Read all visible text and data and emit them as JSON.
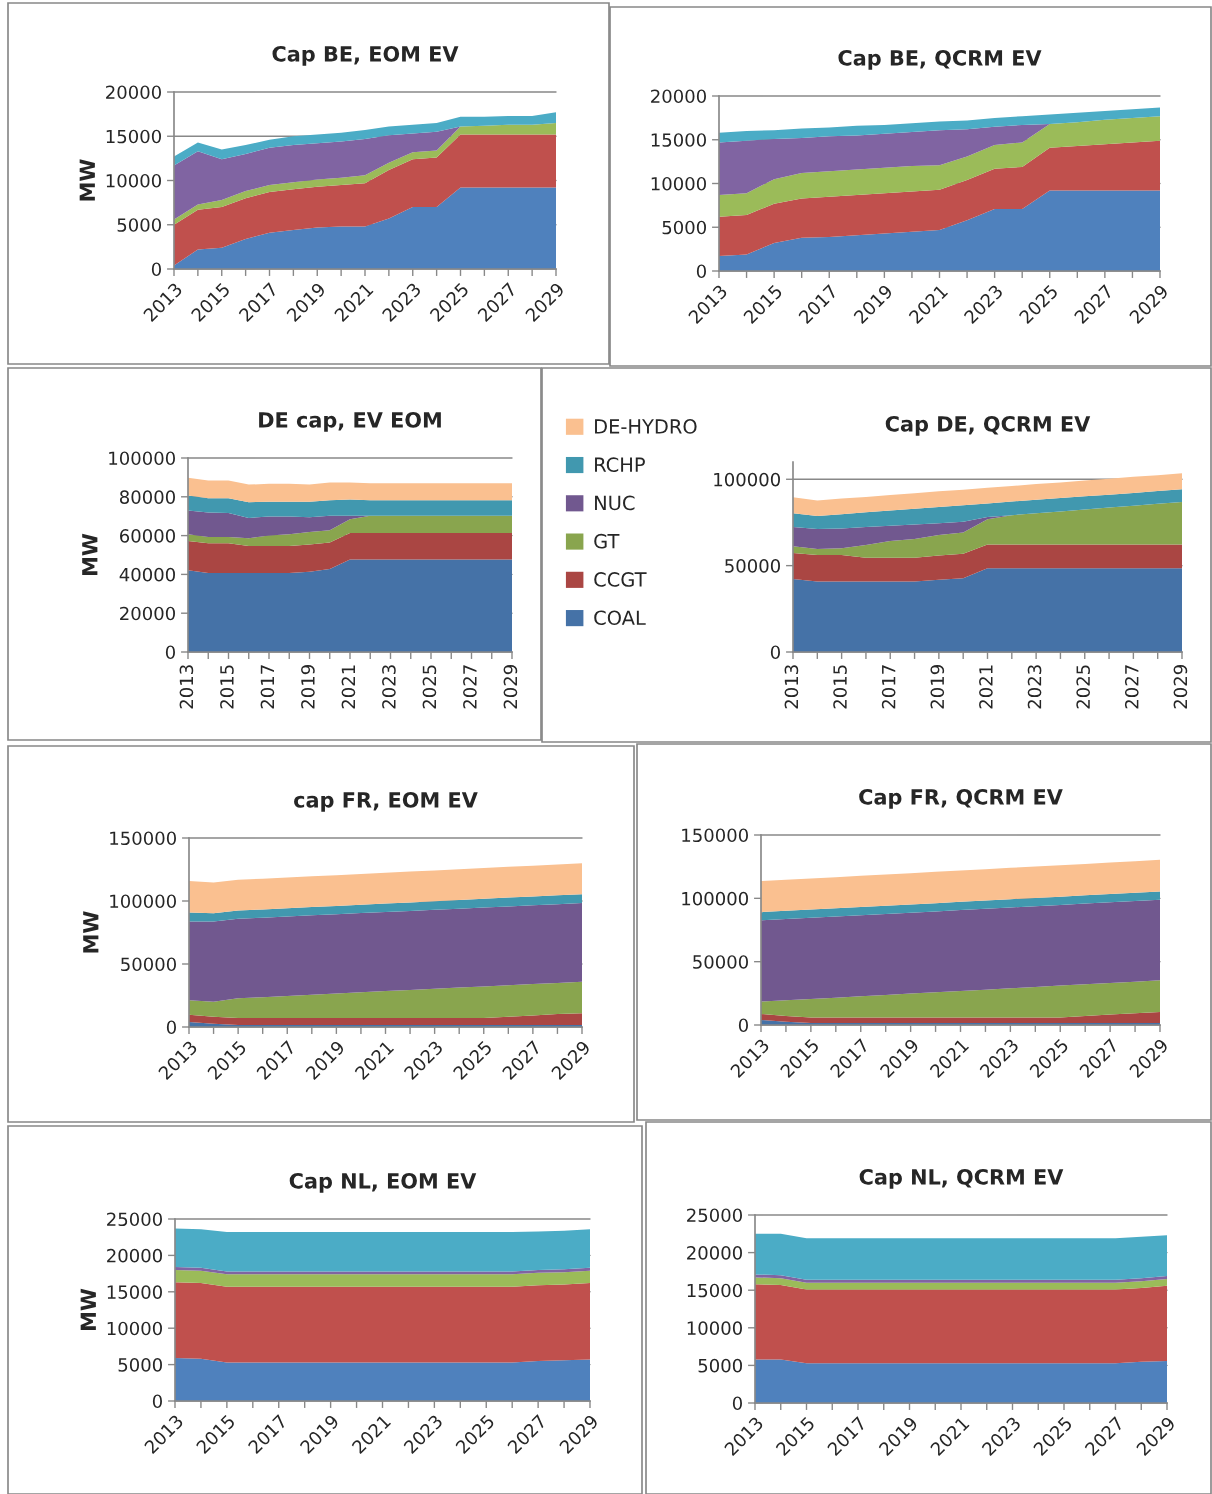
{
  "chart_data": [
    {
      "type": "area",
      "stacked": true,
      "title": "Cap BE, EOM EV",
      "ylabel": "MW",
      "categories": [
        "2013",
        null,
        "2015",
        null,
        "2017",
        null,
        "2019",
        null,
        "2021",
        null,
        "2023",
        null,
        "2025",
        null,
        "2027",
        null,
        "2029"
      ],
      "ylim": [
        0,
        20000
      ],
      "yticks": [
        0,
        5000,
        10000,
        15000,
        20000
      ],
      "grid": "y",
      "series": [
        {
          "color": "#4f81bd",
          "values": [
            400,
            2200,
            2400,
            3400,
            4100,
            4400,
            4700,
            4800,
            4800,
            5700,
            7000,
            7000,
            9200,
            9200,
            9200,
            9200,
            9200
          ]
        },
        {
          "color": "#c0504d",
          "values": [
            4600,
            4500,
            4600,
            4600,
            4600,
            4600,
            4600,
            4700,
            4900,
            5500,
            5400,
            5600,
            6000,
            6000,
            6000,
            6000,
            6000
          ]
        },
        {
          "color": "#9bbb59",
          "values": [
            600,
            600,
            800,
            800,
            800,
            800,
            800,
            800,
            900,
            800,
            800,
            800,
            900,
            1000,
            1100,
            1100,
            1300
          ]
        },
        {
          "color": "#8064a2",
          "values": [
            6100,
            6000,
            4600,
            4200,
            4200,
            4200,
            4100,
            4100,
            4100,
            3100,
            2100,
            2100,
            0,
            0,
            0,
            0,
            0
          ]
        },
        {
          "color": "#4bacc6",
          "values": [
            1000,
            1000,
            1100,
            1000,
            900,
            1000,
            1000,
            1000,
            1000,
            1000,
            1000,
            1000,
            1100,
            1000,
            1000,
            1000,
            1200
          ]
        }
      ]
    },
    {
      "type": "area",
      "stacked": true,
      "title": "Cap BE, QCRM EV",
      "categories": [
        "2013",
        null,
        "2015",
        null,
        "2017",
        null,
        "2019",
        null,
        "2021",
        null,
        "2023",
        null,
        "2025",
        null,
        "2027",
        null,
        "2029"
      ],
      "ylim": [
        0,
        20000
      ],
      "yticks": [
        0,
        5000,
        10000,
        15000,
        20000
      ],
      "grid": "y",
      "series": [
        {
          "color": "#4f81bd",
          "values": [
            1700,
            1900,
            3200,
            3800,
            3900,
            4100,
            4300,
            4500,
            4700,
            5800,
            7100,
            7100,
            9200,
            9200,
            9200,
            9200,
            9200
          ]
        },
        {
          "color": "#c0504d",
          "values": [
            4500,
            4500,
            4500,
            4500,
            4600,
            4600,
            4600,
            4600,
            4600,
            4600,
            4600,
            4800,
            4900,
            5100,
            5300,
            5500,
            5700
          ]
        },
        {
          "color": "#9bbb59",
          "values": [
            2500,
            2500,
            2800,
            2900,
            2900,
            2900,
            2900,
            2900,
            2800,
            2700,
            2700,
            2800,
            2700,
            2700,
            2800,
            2800,
            2800
          ]
        },
        {
          "color": "#8064a2",
          "values": [
            6000,
            6000,
            4600,
            4000,
            4000,
            3900,
            3900,
            3900,
            4000,
            3100,
            2100,
            2000,
            0,
            0,
            0,
            0,
            0
          ]
        },
        {
          "color": "#4bacc6",
          "values": [
            1100,
            1100,
            1000,
            1100,
            1000,
            1100,
            1000,
            1000,
            1000,
            1000,
            1000,
            1000,
            1100,
            1100,
            1000,
            1000,
            1000
          ]
        }
      ]
    },
    {
      "type": "area",
      "stacked": true,
      "title": "DE cap, EV EOM",
      "ylabel": "MW",
      "categories": [
        "2013",
        null,
        "2015",
        null,
        "2017",
        null,
        "2019",
        null,
        "2021",
        null,
        "2023",
        null,
        "2025",
        null,
        "2027",
        null,
        "2029"
      ],
      "ylim": [
        0,
        100000
      ],
      "yticks": [
        0,
        20000,
        40000,
        60000,
        80000,
        100000
      ],
      "grid": "y",
      "series": [
        {
          "color": "#4572a7",
          "values": [
            42100,
            40700,
            40700,
            40700,
            40700,
            40700,
            41400,
            42800,
            47700,
            47700,
            47700,
            47700,
            47700,
            47700,
            47700,
            47700,
            47700
          ]
        },
        {
          "color": "#aa4643",
          "values": [
            15100,
            15400,
            15400,
            14000,
            14000,
            14000,
            14000,
            13700,
            13700,
            13700,
            13700,
            13700,
            13700,
            13700,
            13700,
            13700,
            13700
          ]
        },
        {
          "color": "#89a54e",
          "values": [
            3500,
            3200,
            3200,
            3900,
            5300,
            6000,
            6400,
            6300,
            7000,
            8800,
            8800,
            8800,
            8800,
            8800,
            8800,
            8800,
            8800
          ]
        },
        {
          "color": "#71588f",
          "values": [
            12300,
            12600,
            12300,
            10500,
            9800,
            9100,
            7700,
            7400,
            1800,
            0,
            0,
            0,
            0,
            0,
            0,
            0,
            0
          ]
        },
        {
          "color": "#4198af",
          "values": [
            7700,
            7400,
            7700,
            8100,
            7700,
            7700,
            8000,
            8000,
            8400,
            8000,
            8000,
            8000,
            8000,
            8000,
            8000,
            8000,
            8000
          ]
        },
        {
          "color": "#fac090",
          "values": [
            9100,
            9100,
            9100,
            9100,
            9200,
            9200,
            8800,
            9200,
            8800,
            8800,
            8800,
            8800,
            8800,
            8800,
            8800,
            8800,
            8800
          ]
        }
      ]
    },
    {
      "type": "area",
      "stacked": true,
      "title": "Cap DE, QCRM EV",
      "legend": "left",
      "categories": [
        "2013",
        null,
        "2015",
        null,
        "2017",
        null,
        "2019",
        null,
        "2021",
        null,
        "2023",
        null,
        "2025",
        null,
        "2027",
        null,
        "2029"
      ],
      "ylim": [
        0,
        110000
      ],
      "yticks": [
        0,
        50000,
        100000
      ],
      "grid": "y",
      "series": [
        {
          "name": "COAL",
          "color": "#4572a7",
          "values": [
            42300,
            40800,
            40800,
            40800,
            40800,
            40800,
            41900,
            42700,
            48500,
            48500,
            48500,
            48500,
            48500,
            48500,
            48500,
            48500,
            48500
          ]
        },
        {
          "name": "CCGT",
          "color": "#aa4643",
          "values": [
            15000,
            15400,
            15400,
            13800,
            13800,
            13800,
            13900,
            14200,
            13800,
            13800,
            13800,
            13800,
            13800,
            13800,
            13800,
            13800,
            13800
          ]
        },
        {
          "name": "GT",
          "color": "#89a54e",
          "values": [
            3900,
            3400,
            3800,
            7300,
            9600,
            10800,
            11900,
            12300,
            14600,
            16900,
            18000,
            19100,
            20200,
            21300,
            22400,
            23500,
            24600
          ]
        },
        {
          "name": "NUC",
          "color": "#71588f",
          "values": [
            11100,
            11600,
            11500,
            10400,
            8900,
            8400,
            6900,
            6200,
            1200,
            0,
            0,
            0,
            0,
            0,
            0,
            0,
            0
          ]
        },
        {
          "name": "RCHP",
          "color": "#4198af",
          "values": [
            8100,
            7600,
            8300,
            8600,
            8800,
            9100,
            9400,
            9600,
            7900,
            7900,
            7800,
            7700,
            7600,
            7500,
            7400,
            7400,
            7300
          ]
        },
        {
          "name": "DE-HYDRO",
          "color": "#fac090",
          "values": [
            9200,
            8900,
            9000,
            8900,
            9000,
            9000,
            9000,
            9000,
            9100,
            9000,
            9100,
            9100,
            9200,
            9200,
            9300,
            9200,
            9300
          ]
        }
      ]
    },
    {
      "type": "area",
      "stacked": true,
      "title": "cap FR, EOM EV",
      "ylabel": "MW",
      "categories": [
        "2013",
        null,
        "2015",
        null,
        "2017",
        null,
        "2019",
        null,
        "2021",
        null,
        "2023",
        null,
        "2025",
        null,
        "2027",
        null,
        "2029"
      ],
      "ylim": [
        0,
        150000
      ],
      "yticks": [
        0,
        50000,
        100000,
        150000
      ],
      "grid": "y",
      "series": [
        {
          "color": "#4572a7",
          "values": [
            4000,
            2500,
            1500,
            1500,
            1500,
            1500,
            1500,
            1500,
            1500,
            1500,
            1500,
            1500,
            1500,
            1500,
            1500,
            1500,
            1500
          ]
        },
        {
          "color": "#aa4643",
          "values": [
            5800,
            5700,
            5600,
            5600,
            5600,
            5600,
            5600,
            5600,
            5600,
            5600,
            5600,
            5600,
            5600,
            6700,
            7700,
            8800,
            9400
          ]
        },
        {
          "color": "#89a54e",
          "values": [
            11400,
            11900,
            15700,
            16600,
            17600,
            18500,
            19500,
            20400,
            21400,
            22300,
            23200,
            24200,
            25100,
            25000,
            24900,
            24700,
            25000
          ]
        },
        {
          "color": "#71588f",
          "values": [
            62500,
            63600,
            63100,
            63100,
            63000,
            63000,
            62900,
            62900,
            62800,
            62700,
            62700,
            62600,
            62600,
            62500,
            62500,
            62500,
            62500
          ]
        },
        {
          "color": "#4198af",
          "values": [
            7100,
            6500,
            6500,
            6500,
            6600,
            6600,
            6600,
            6700,
            6700,
            6800,
            6900,
            6900,
            6900,
            7000,
            7000,
            7000,
            7000
          ]
        },
        {
          "color": "#fac090",
          "values": [
            25000,
            24500,
            24400,
            24400,
            24400,
            24400,
            24400,
            24400,
            24400,
            24500,
            24400,
            24400,
            24500,
            24400,
            24400,
            24500,
            24500
          ]
        }
      ]
    },
    {
      "type": "area",
      "stacked": true,
      "title": "Cap FR, QCRM EV",
      "categories": [
        "2013",
        null,
        "2015",
        null,
        "2017",
        null,
        "2019",
        null,
        "2021",
        null,
        "2023",
        null,
        "2025",
        null,
        "2027",
        null,
        "2029"
      ],
      "ylim": [
        0,
        150000
      ],
      "yticks": [
        0,
        50000,
        100000,
        150000
      ],
      "grid": "y",
      "series": [
        {
          "color": "#4572a7",
          "values": [
            4000,
            2500,
            1500,
            1500,
            1500,
            1500,
            1500,
            1500,
            1500,
            1500,
            1500,
            1500,
            1500,
            1500,
            1500,
            1500,
            1500
          ]
        },
        {
          "color": "#aa4643",
          "values": [
            4700,
            4600,
            4500,
            4500,
            4500,
            4500,
            4500,
            4500,
            4500,
            4500,
            4500,
            4500,
            4500,
            5600,
            6700,
            7700,
            8800
          ]
        },
        {
          "color": "#89a54e",
          "values": [
            9800,
            12400,
            14600,
            15600,
            16700,
            17700,
            18800,
            19800,
            20900,
            21900,
            23000,
            24000,
            25100,
            25000,
            25000,
            25000,
            25000
          ]
        },
        {
          "color": "#71588f",
          "values": [
            64100,
            64100,
            64000,
            64100,
            64000,
            64000,
            63900,
            63900,
            63900,
            63900,
            63800,
            63800,
            63700,
            63800,
            63700,
            63700,
            63600
          ]
        },
        {
          "color": "#4198af",
          "values": [
            6500,
            6500,
            6500,
            6500,
            6500,
            6500,
            6500,
            6500,
            6500,
            6500,
            6500,
            6500,
            6500,
            6500,
            6500,
            6500,
            6500
          ]
        },
        {
          "color": "#fac090",
          "values": [
            24500,
            24500,
            24600,
            24500,
            24600,
            24600,
            24700,
            24700,
            24700,
            24700,
            24800,
            24800,
            24900,
            24800,
            24900,
            24900,
            25000
          ]
        }
      ]
    },
    {
      "type": "area",
      "stacked": true,
      "title": "Cap NL, EOM EV",
      "ylabel": "MW",
      "categories": [
        "2013",
        null,
        "2015",
        null,
        "2017",
        null,
        "2019",
        null,
        "2021",
        null,
        "2023",
        null,
        "2025",
        null,
        "2027",
        null,
        "2029"
      ],
      "ylim": [
        0,
        25000
      ],
      "yticks": [
        0,
        5000,
        10000,
        15000,
        20000,
        25000
      ],
      "grid": "y",
      "series": [
        {
          "color": "#4f81bd",
          "values": [
            5900,
            5800,
            5300,
            5300,
            5300,
            5300,
            5300,
            5300,
            5300,
            5300,
            5300,
            5300,
            5300,
            5300,
            5500,
            5600,
            5700
          ]
        },
        {
          "color": "#c0504d",
          "values": [
            10400,
            10400,
            10400,
            10400,
            10400,
            10400,
            10400,
            10400,
            10400,
            10400,
            10400,
            10400,
            10400,
            10400,
            10400,
            10400,
            10500
          ]
        },
        {
          "color": "#9bbb59",
          "values": [
            1700,
            1700,
            1700,
            1700,
            1700,
            1700,
            1700,
            1700,
            1700,
            1700,
            1700,
            1700,
            1700,
            1700,
            1700,
            1700,
            1700
          ]
        },
        {
          "color": "#8064a2",
          "values": [
            400,
            400,
            400,
            400,
            400,
            400,
            400,
            400,
            400,
            400,
            400,
            400,
            400,
            400,
            400,
            400,
            400
          ]
        },
        {
          "color": "#4bacc6",
          "values": [
            5300,
            5300,
            5400,
            5400,
            5400,
            5400,
            5400,
            5400,
            5400,
            5400,
            5400,
            5400,
            5400,
            5400,
            5300,
            5300,
            5300
          ]
        }
      ]
    },
    {
      "type": "area",
      "stacked": true,
      "title": "Cap NL, QCRM EV",
      "categories": [
        "2013",
        null,
        "2015",
        null,
        "2017",
        null,
        "2019",
        null,
        "2021",
        null,
        "2023",
        null,
        "2025",
        null,
        "2027",
        null,
        "2029"
      ],
      "ylim": [
        0,
        25000
      ],
      "yticks": [
        0,
        5000,
        10000,
        15000,
        20000,
        25000
      ],
      "grid": "y",
      "series": [
        {
          "color": "#4f81bd",
          "values": [
            5800,
            5800,
            5300,
            5300,
            5300,
            5300,
            5300,
            5300,
            5300,
            5300,
            5300,
            5300,
            5300,
            5300,
            5300,
            5500,
            5600
          ]
        },
        {
          "color": "#c0504d",
          "values": [
            10000,
            9900,
            9800,
            9800,
            9800,
            9800,
            9800,
            9800,
            9800,
            9800,
            9800,
            9800,
            9800,
            9800,
            9800,
            9800,
            10000
          ]
        },
        {
          "color": "#9bbb59",
          "values": [
            900,
            900,
            900,
            900,
            900,
            900,
            900,
            900,
            900,
            900,
            900,
            900,
            900,
            900,
            900,
            900,
            900
          ]
        },
        {
          "color": "#8064a2",
          "values": [
            400,
            400,
            400,
            400,
            400,
            400,
            400,
            400,
            400,
            400,
            400,
            400,
            400,
            400,
            400,
            400,
            400
          ]
        },
        {
          "color": "#4bacc6",
          "values": [
            5400,
            5500,
            5500,
            5500,
            5500,
            5500,
            5500,
            5500,
            5500,
            5500,
            5500,
            5500,
            5500,
            5500,
            5500,
            5500,
            5400
          ]
        }
      ]
    }
  ]
}
